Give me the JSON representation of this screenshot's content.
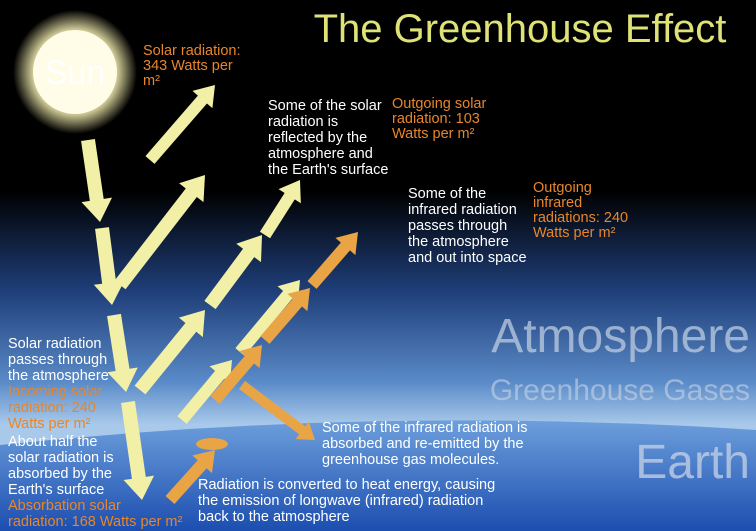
{
  "title": "The Greenhouse Effect",
  "sun": "Sun",
  "labels": {
    "solar_in": {
      "lines": [
        "Solar radiation:",
        "343 Watts per",
        "m²"
      ]
    },
    "reflected": {
      "lines": [
        "Some of the solar",
        "radiation is",
        "reflected by the",
        "atmosphere and",
        "the Earth's surface"
      ]
    },
    "outgoing_solar": {
      "lines": [
        "Outgoing solar",
        "radiation: 103",
        "Watts per m²"
      ]
    },
    "ir_out": {
      "lines": [
        "Some of the",
        "infrared radiation",
        "passes through",
        "the atmosphere",
        "and out into space"
      ]
    },
    "outgoing_ir": {
      "lines": [
        "Outgoing",
        "infrared",
        "radiations: 240",
        "Watts per m²"
      ]
    },
    "passes": {
      "lines": [
        "Solar radiation",
        "passes through",
        "the atmosphere"
      ]
    },
    "incoming": {
      "lines": [
        "Incoming solar",
        "radiation: 240",
        "Watts per m²"
      ]
    },
    "absorbed": {
      "lines": [
        "About half the",
        "solar radiation is",
        "absorbed by the",
        "Earth's surface"
      ]
    },
    "absorbation": {
      "lines": [
        "Absorbation solar",
        "radiation: 168 Watts per m²"
      ]
    },
    "reemitted": {
      "lines": [
        "Some of the infrared radiation is",
        "absorbed and re-emitted by the",
        "greenhouse gas molecules."
      ]
    },
    "converted": {
      "lines": [
        "Radiation is converted to heat energy, causing",
        "the emission of longwave (infrared) radiation",
        "back to the atmosphere"
      ]
    }
  },
  "layers": {
    "atmosphere": "Atmosphere",
    "gases": "Greenhouse Gases",
    "earth": "Earth"
  }
}
